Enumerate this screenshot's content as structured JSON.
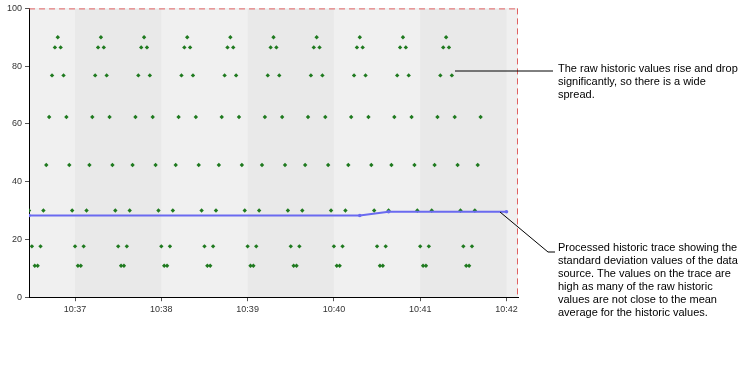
{
  "chart_data": {
    "type": "scatter",
    "xlim": [
      28,
      368
    ],
    "xticks": [
      {
        "value": 60,
        "label": "10:37"
      },
      {
        "value": 120,
        "label": "10:38"
      },
      {
        "value": 180,
        "label": "10:39"
      },
      {
        "value": 240,
        "label": "10:40"
      },
      {
        "value": 300,
        "label": "10:41"
      },
      {
        "value": 360,
        "label": "10:42"
      }
    ],
    "ylim": [
      0,
      100
    ],
    "yticks": [
      0,
      20,
      40,
      60,
      80,
      100
    ],
    "grid": false,
    "series": [
      {
        "type": "scatter",
        "color": "#1f7a1f",
        "marker": "diamond",
        "x": [
          28,
          30,
          32,
          34,
          36,
          38,
          40,
          42,
          44,
          46,
          48,
          50,
          52,
          54,
          56,
          58,
          60,
          62,
          64,
          66,
          68,
          70,
          72,
          74,
          76,
          78,
          80,
          82,
          84,
          86,
          88,
          90,
          92,
          94,
          96,
          98,
          100,
          102,
          104,
          106,
          108,
          110,
          112,
          114,
          116,
          118,
          120,
          122,
          124,
          126,
          128,
          130,
          132,
          134,
          136,
          138,
          140,
          142,
          144,
          146,
          148,
          150,
          152,
          154,
          156,
          158,
          160,
          162,
          164,
          166,
          168,
          170,
          172,
          174,
          176,
          178,
          180,
          182,
          184,
          186,
          188,
          190,
          192,
          194,
          196,
          198,
          200,
          202,
          204,
          206,
          208,
          210,
          212,
          214,
          216,
          218,
          220,
          222,
          224,
          226,
          228,
          230,
          232,
          234,
          236,
          238,
          240,
          242,
          244,
          246,
          248,
          250,
          252,
          254,
          256,
          258,
          260,
          262,
          264,
          266,
          268,
          270,
          272,
          274,
          276,
          278,
          280,
          282,
          284,
          286,
          288,
          290,
          292,
          294,
          296,
          298,
          300,
          302,
          304,
          306,
          308,
          310,
          312,
          314,
          316,
          318,
          320,
          322,
          324,
          326,
          328,
          330,
          332,
          334,
          336,
          338,
          340,
          342
        ],
        "values": [
          30,
          17.6,
          10.9,
          10.9,
          17.6,
          30,
          45.8,
          62.4,
          76.8,
          86.5,
          90,
          86.5,
          76.8,
          62.4,
          45.8,
          30,
          17.6,
          10.9,
          10.9,
          17.6,
          30,
          45.8,
          62.4,
          76.8,
          86.5,
          90,
          86.5,
          76.8,
          62.4,
          45.8,
          30,
          17.6,
          10.9,
          10.9,
          17.6,
          30,
          45.8,
          62.4,
          76.8,
          86.5,
          90,
          86.5,
          76.8,
          62.4,
          45.8,
          30,
          17.6,
          10.9,
          10.9,
          17.6,
          30,
          45.8,
          62.4,
          76.8,
          86.5,
          90,
          86.5,
          76.8,
          62.4,
          45.8,
          30,
          17.6,
          10.9,
          10.9,
          17.6,
          30,
          45.8,
          62.4,
          76.8,
          86.5,
          90,
          86.5,
          76.8,
          62.4,
          45.8,
          30,
          17.6,
          10.9,
          10.9,
          17.6,
          30,
          45.8,
          62.4,
          76.8,
          86.5,
          90,
          86.5,
          76.8,
          62.4,
          45.8,
          30,
          17.6,
          10.9,
          10.9,
          17.6,
          30,
          45.8,
          62.4,
          76.8,
          86.5,
          90,
          86.5,
          76.8,
          62.4,
          45.8,
          30,
          17.6,
          10.9,
          10.9,
          17.6,
          30,
          45.8,
          62.4,
          76.8,
          86.5,
          90,
          86.5,
          76.8,
          62.4,
          45.8,
          30,
          17.6,
          10.9,
          10.9,
          17.6,
          30,
          45.8,
          62.4,
          76.8,
          86.5,
          90,
          86.5,
          76.8,
          62.4,
          45.8,
          30,
          17.6,
          10.9,
          10.9,
          17.6,
          30,
          45.8,
          62.4,
          76.8,
          86.5,
          90,
          86.5,
          76.8,
          62.4,
          45.8,
          30,
          17.6,
          10.9,
          10.9,
          17.6,
          30,
          45.8,
          62.4
        ]
      },
      {
        "type": "line",
        "color": "#6a6af0",
        "marker": "circle",
        "x": [
          28,
          258,
          278,
          360
        ],
        "values": [
          28.3,
          28.3,
          29.6,
          29.6
        ]
      }
    ],
    "annotations": [
      "The raw historic values rise and drop significantly, so there is a wide spread.",
      "Processed historic trace showing the standard deviation values of the data source. The values on the trace are high as many of the raw historic values are not close to the mean average for the historic values."
    ]
  }
}
